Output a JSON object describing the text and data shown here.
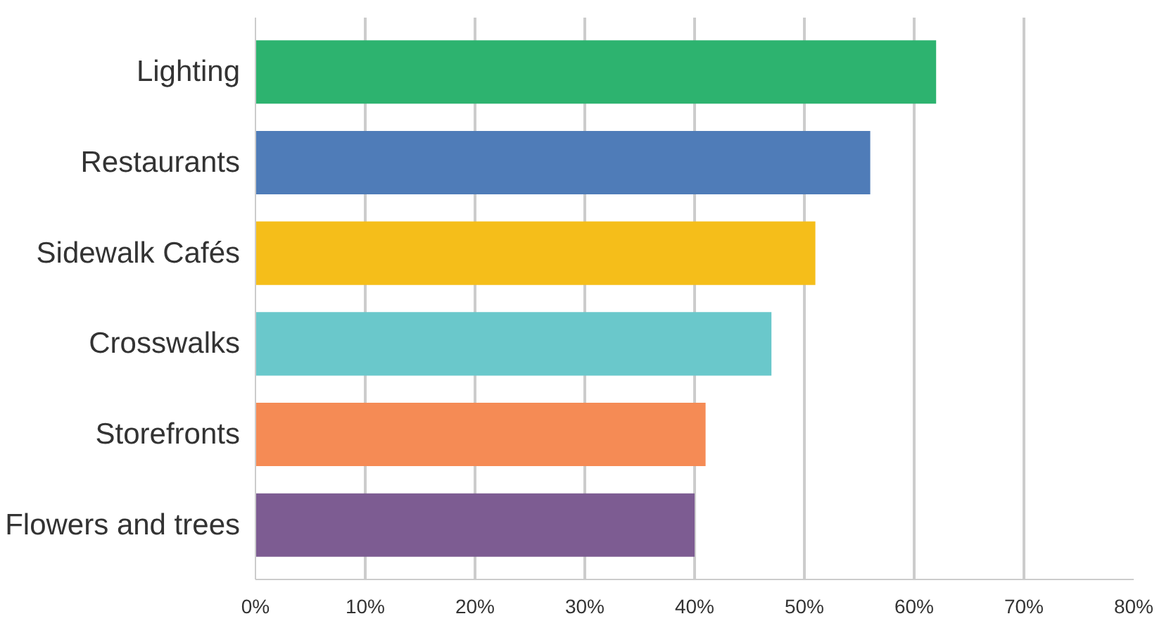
{
  "chart_data": {
    "type": "bar",
    "orientation": "horizontal",
    "categories": [
      "Lighting",
      "Restaurants",
      "Sidewalk Cafés",
      "Crosswalks",
      "Storefronts",
      "Flowers and trees"
    ],
    "values": [
      62,
      56,
      51,
      47,
      41,
      40
    ],
    "colors": [
      "#2db36f",
      "#4f7cb8",
      "#f5be1a",
      "#6ac8cb",
      "#f58b55",
      "#7d5c92"
    ],
    "xlim": [
      0,
      80
    ],
    "xticks": [
      {
        "value": 0,
        "label": "0%"
      },
      {
        "value": 10,
        "label": "10%"
      },
      {
        "value": 20,
        "label": "20%"
      },
      {
        "value": 30,
        "label": "30%"
      },
      {
        "value": 40,
        "label": "40%"
      },
      {
        "value": 50,
        "label": "50%"
      },
      {
        "value": 60,
        "label": "60%"
      },
      {
        "value": 70,
        "label": "70%"
      },
      {
        "value": 80,
        "label": "80%"
      }
    ],
    "grid": "x"
  }
}
